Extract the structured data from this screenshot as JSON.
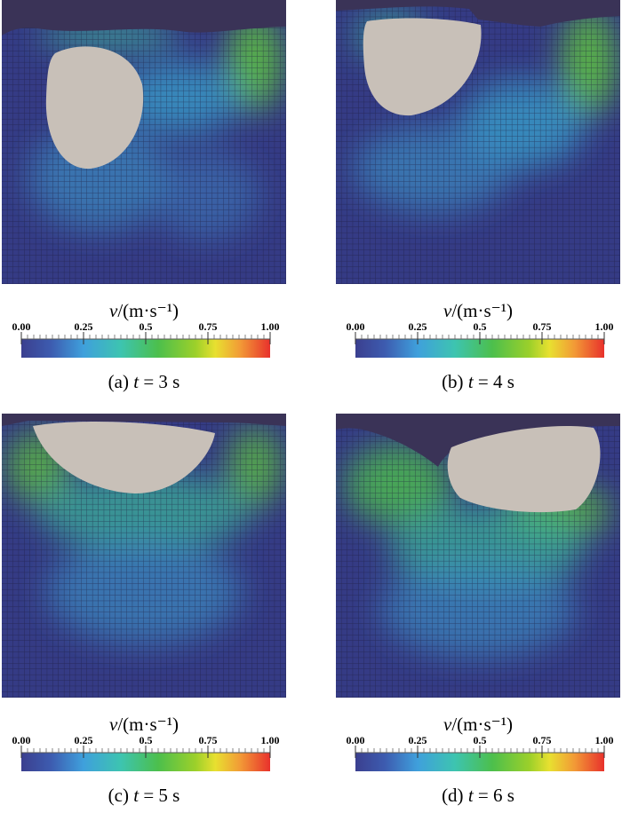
{
  "legend": {
    "quantity": "v",
    "unit": "/(m·s⁻¹)",
    "range": [
      0,
      1
    ],
    "ticks": [
      {
        "value": 0,
        "label": "0.00"
      },
      0.25,
      0.5,
      0.75,
      {
        "value": 1,
        "label": "1.00"
      }
    ]
  },
  "panels": [
    {
      "tag": "(a)",
      "variable": "t",
      "rest": "= 3 s"
    },
    {
      "tag": "(b)",
      "variable": "t",
      "rest": "= 4 s"
    },
    {
      "tag": "(c)",
      "variable": "t",
      "rest": "= 5 s"
    },
    {
      "tag": "(d)",
      "variable": "t",
      "rest": "= 6 s"
    }
  ]
}
